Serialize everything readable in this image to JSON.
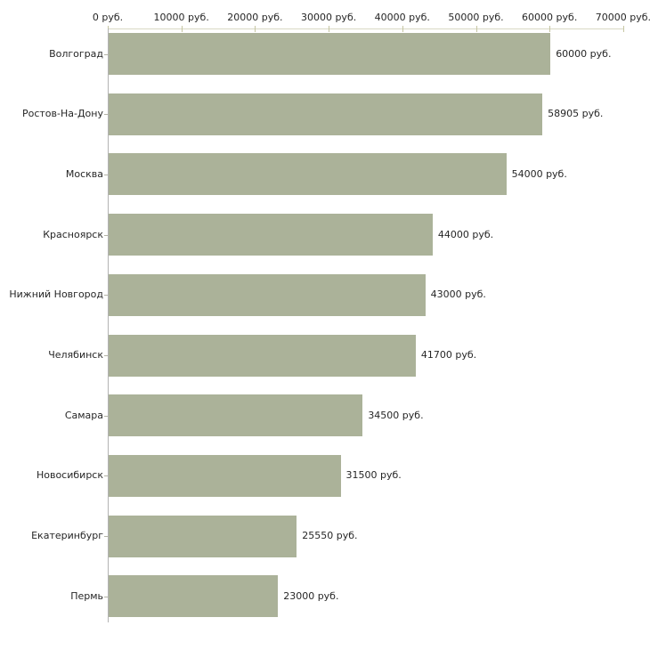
{
  "chart_data": {
    "type": "bar",
    "orientation": "horizontal",
    "categories": [
      "Волгоград",
      "Ростов-На-Дону",
      "Москва",
      "Красноярск",
      "Нижний Новгород",
      "Челябинск",
      "Самара",
      "Новосибирск",
      "Екатеринбург",
      "Пермь"
    ],
    "values": [
      60000,
      58905,
      54000,
      44000,
      43000,
      41700,
      34500,
      31500,
      25550,
      23000
    ],
    "value_labels": [
      "60000 руб.",
      "58905 руб.",
      "54000 руб.",
      "44000 руб.",
      "43000 руб.",
      "41700 руб.",
      "34500 руб.",
      "31500 руб.",
      "25550 руб.",
      "23000 руб."
    ],
    "axis_ticks": [
      0,
      10000,
      20000,
      30000,
      40000,
      50000,
      60000,
      70000
    ],
    "axis_tick_labels": [
      "0 руб.",
      "10000 руб.",
      "20000 руб.",
      "30000 руб.",
      "40000 руб.",
      "50000 руб.",
      "60000 руб.",
      "70000 руб."
    ],
    "xlim": [
      0,
      70000
    ],
    "title": "",
    "xlabel": "",
    "ylabel": "",
    "grid": false,
    "legend": false,
    "colors": {
      "bar_fill": "#abb299",
      "axis_line": "#d9d9c3",
      "axis_tick": "#c6c6a3",
      "category_axis_line": "#b3b3b3",
      "category_tick": "#b3b3a6",
      "text": "#262626"
    }
  }
}
